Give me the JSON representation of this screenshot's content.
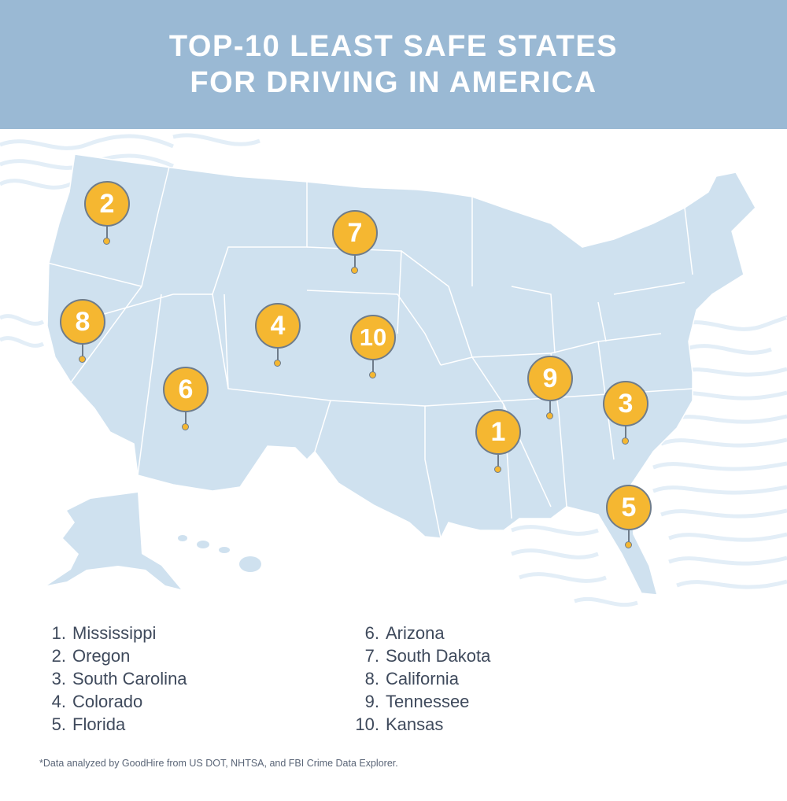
{
  "header": {
    "title_line1": "TOP-10 LEAST SAFE STATES",
    "title_line2": "FOR DRIVING IN AMERICA"
  },
  "colors": {
    "header_bg": "#9ab9d4",
    "map_fill": "#cfe1ef",
    "state_border": "#ffffff",
    "marker_fill": "#f5b731",
    "marker_outline": "#6f7c8a",
    "text": "#3f4a5c"
  },
  "markers": [
    {
      "rank": "1",
      "state": "Mississippi"
    },
    {
      "rank": "2",
      "state": "Oregon"
    },
    {
      "rank": "3",
      "state": "South Carolina"
    },
    {
      "rank": "4",
      "state": "Colorado"
    },
    {
      "rank": "5",
      "state": "Florida"
    },
    {
      "rank": "6",
      "state": "Arizona"
    },
    {
      "rank": "7",
      "state": "South Dakota"
    },
    {
      "rank": "8",
      "state": "California"
    },
    {
      "rank": "9",
      "state": "Tennessee"
    },
    {
      "rank": "10",
      "state": "Kansas"
    }
  ],
  "ranking": [
    {
      "num": "1.",
      "state": "Mississippi"
    },
    {
      "num": "2.",
      "state": "Oregon"
    },
    {
      "num": "3.",
      "state": "South Carolina"
    },
    {
      "num": "4.",
      "state": "Colorado"
    },
    {
      "num": "5.",
      "state": "Florida"
    },
    {
      "num": "6.",
      "state": "Arizona"
    },
    {
      "num": "7.",
      "state": "South Dakota"
    },
    {
      "num": "8.",
      "state": "California"
    },
    {
      "num": "9.",
      "state": "Tennessee"
    },
    {
      "num": "10.",
      "state": "Kansas"
    }
  ],
  "footnote": "*Data analyzed by GoodHire from US DOT, NHTSA, and FBI Crime Data Explorer."
}
